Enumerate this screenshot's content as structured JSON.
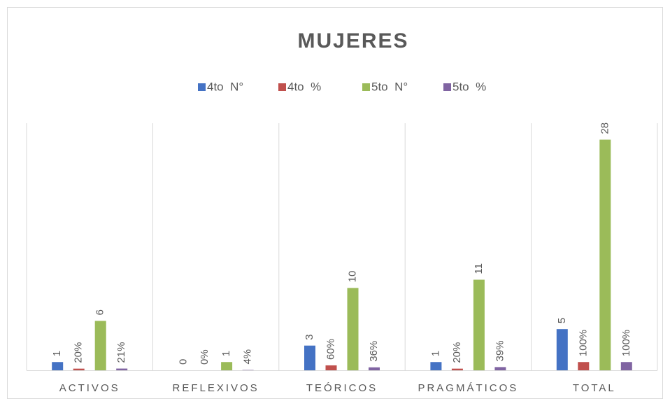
{
  "chart_data": {
    "type": "bar",
    "title": "MUJERES",
    "categories": [
      "ACTIVOS",
      "REFLEXIVOS",
      "TEÓRICOS",
      "PRAGMÁTICOS",
      "TOTAL"
    ],
    "series": [
      {
        "name": "4to  N°",
        "color": "#4472c4",
        "values": [
          1,
          0,
          3,
          1,
          5
        ]
      },
      {
        "name": "4to  %",
        "color": "#c0504d",
        "values": [
          0.2,
          0,
          0.6,
          0.2,
          1
        ],
        "value_labels": [
          "20%",
          "0%",
          "60%",
          "20%",
          "100%"
        ]
      },
      {
        "name": "5to  N°",
        "color": "#9bbb59",
        "values": [
          6,
          1,
          10,
          11,
          28
        ]
      },
      {
        "name": "5to  %",
        "color": "#8064a2",
        "values": [
          0.21,
          0.04,
          0.36,
          0.39,
          1
        ],
        "value_labels": [
          "21%",
          "4%",
          "36%",
          "39%",
          "100%"
        ]
      }
    ],
    "ylim": [
      0,
      30
    ],
    "legend": "top"
  }
}
